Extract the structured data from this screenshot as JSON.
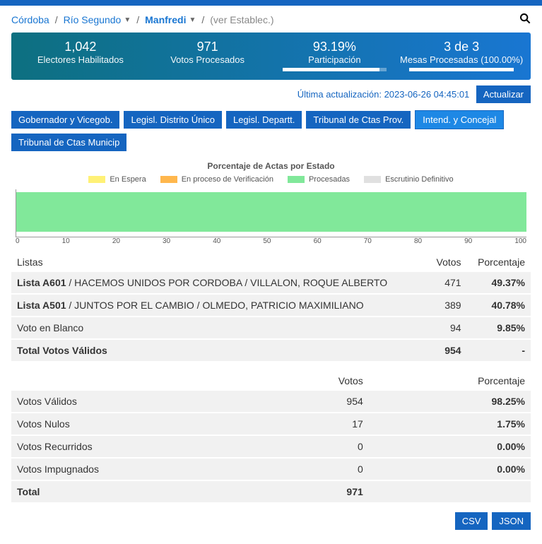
{
  "breadcrumb": {
    "province": "Córdoba",
    "department": "Río Segundo",
    "locality": "Manfredi",
    "see_estab": "(ver Establec.)"
  },
  "stats": {
    "eligible": {
      "value": "1,042",
      "label": "Electores Habilitados"
    },
    "processed": {
      "value": "971",
      "label": "Votos Procesados"
    },
    "participation": {
      "value": "93.19%",
      "label": "Participación",
      "bar_pct": 93.19
    },
    "tables": {
      "value": "3 de 3",
      "label": "Mesas Procesadas (100.00%)",
      "bar_pct": 100
    }
  },
  "update": {
    "text": "Última actualización: 2023-06-26 04:45:01",
    "button": "Actualizar"
  },
  "tabs": [
    {
      "label": "Gobernador y Vicegob.",
      "active": false
    },
    {
      "label": "Legisl. Distrito Único",
      "active": false
    },
    {
      "label": "Legisl. Departt.",
      "active": false
    },
    {
      "label": "Tribunal de Ctas Prov.",
      "active": false
    },
    {
      "label": "Intend. y Concejal",
      "active": true
    },
    {
      "label": "Tribunal de Ctas Municip",
      "active": false
    }
  ],
  "chart": {
    "title": "Porcentaje de Actas por Estado",
    "legend": [
      {
        "label": "En Espera",
        "color": "#fff176"
      },
      {
        "label": "En proceso de Verificación",
        "color": "#ffb74d"
      },
      {
        "label": "Procesadas",
        "color": "#81e89a"
      },
      {
        "label": "Escrutinio Definitivo",
        "color": "#e0e0e0"
      }
    ],
    "bar_color": "#81e89a",
    "ticks": [
      "0",
      "10",
      "20",
      "30",
      "40",
      "50",
      "60",
      "70",
      "80",
      "90",
      "100"
    ]
  },
  "table1": {
    "headers": [
      "Listas",
      "Votos",
      "Porcentaje"
    ],
    "rows": [
      {
        "name": "Lista A601 / HACEMOS UNIDOS POR CORDOBA / VILLALON, ROQUE ALBERTO",
        "bold_prefix": "Lista A601",
        "votes": "471",
        "pct": "49.37%"
      },
      {
        "name": "Lista A501 / JUNTOS POR EL CAMBIO / OLMEDO, PATRICIO MAXIMILIANO",
        "bold_prefix": "Lista A501",
        "votes": "389",
        "pct": "40.78%"
      },
      {
        "name": "Voto en Blanco",
        "votes": "94",
        "pct": "9.85%"
      }
    ],
    "total": {
      "name": "Total Votos Válidos",
      "votes": "954",
      "pct": "-"
    }
  },
  "table2": {
    "headers": [
      "",
      "Votos",
      "Porcentaje"
    ],
    "rows": [
      {
        "name": "Votos Válidos",
        "votes": "954",
        "pct": "98.25%"
      },
      {
        "name": "Votos Nulos",
        "votes": "17",
        "pct": "1.75%"
      },
      {
        "name": "Votos Recurridos",
        "votes": "0",
        "pct": "0.00%"
      },
      {
        "name": "Votos Impugnados",
        "votes": "0",
        "pct": "0.00%"
      }
    ],
    "total": {
      "name": "Total",
      "votes": "971",
      "pct": ""
    }
  },
  "exports": {
    "csv": "CSV",
    "json": "JSON"
  },
  "colors": {
    "primary": "#1565c0",
    "link": "#1976d2",
    "grad_start": "#0d7080",
    "grad_end": "#1976d2"
  }
}
